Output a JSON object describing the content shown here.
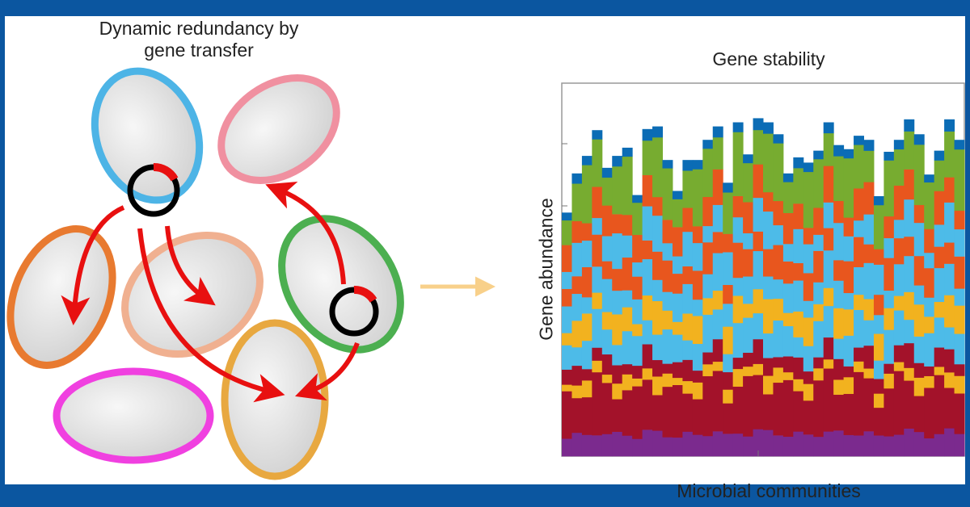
{
  "diagram": {
    "title_line1": "Dynamic redundancy by",
    "title_line2": "gene transfer",
    "cell_colors": [
      "#4db4e6",
      "#f090a0",
      "#e87a30",
      "#f0b090",
      "#4caf50",
      "#e8a840",
      "#f040e0"
    ],
    "arrow_color": "#e81010",
    "plasmid_color": "#000000",
    "transition_arrow_color": "#f8d08a"
  },
  "frame": {
    "border_color": "#0b56a0"
  },
  "chart_data": {
    "type": "bar",
    "stacked": true,
    "title": "Gene stability",
    "xlabel": "Microbial communities",
    "ylabel": "Gene abundance",
    "ylim": [
      0,
      100
    ],
    "grid": false,
    "layer_colors_bottom_to_top": [
      "#7b2a8e",
      "#a3122a",
      "#f2b21f",
      "#a3122a",
      "#4dbbe8",
      "#f2b21f",
      "#4dbbe8",
      "#e8561e",
      "#4dbbe8",
      "#e8561e",
      "#77ac30",
      "#0b6cb5"
    ],
    "totals": [
      65.3,
      75.8,
      80.5,
      87.4,
      77.3,
      80.5,
      82.7,
      70.0,
      87.7,
      88.4,
      79.4,
      71.1,
      79.4,
      79.4,
      84.8,
      88.4,
      73.3,
      89.5,
      80.9,
      90.6,
      89.5,
      86.3,
      75.8,
      80.1,
      78.7,
      81.9,
      89.5,
      83.4,
      82.3,
      85.9,
      84.8,
      69.7,
      81.6,
      84.8,
      90.3,
      86.3,
      75.5,
      81.9,
      90.3,
      84.8
    ]
  }
}
